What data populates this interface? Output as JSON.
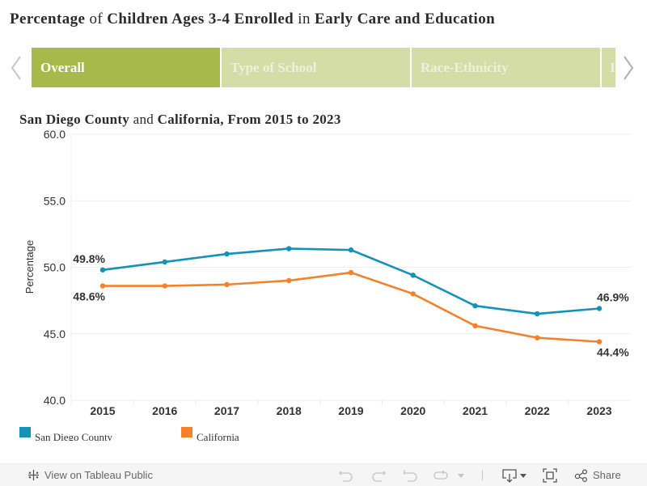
{
  "title": {
    "parts": [
      {
        "text": "Percentage",
        "bold": true
      },
      {
        "text": "of",
        "bold": false
      },
      {
        "text": "Children Ages 3-4 Enrolled",
        "bold": true
      },
      {
        "text": "in",
        "bold": false
      },
      {
        "text": "Early Care and Education",
        "bold": true
      }
    ]
  },
  "tabs": [
    {
      "label": "Overall",
      "active": true
    },
    {
      "label": "Type of School",
      "active": false
    },
    {
      "label": "Race-Ethnicity",
      "active": false
    },
    {
      "label": "I",
      "active": false
    }
  ],
  "nav": {
    "prev_icon": "chevron-left-icon",
    "next_icon": "chevron-right-icon"
  },
  "subtitle": {
    "parts": [
      {
        "text": "San Diego County",
        "bold": true
      },
      {
        "text": "and",
        "bold": false
      },
      {
        "text": "California, From 2015 to 2023",
        "bold": true
      }
    ]
  },
  "chart_data": {
    "type": "line",
    "title": "San Diego County and California, From 2015 to 2023",
    "xlabel": "",
    "ylabel": "Percentage",
    "x": [
      "2015",
      "2016",
      "2017",
      "2018",
      "2019",
      "2020",
      "2021",
      "2022",
      "2023"
    ],
    "ylim": [
      40,
      60
    ],
    "yticks": [
      "40.0",
      "45.0",
      "50.0",
      "55.0",
      "60.0"
    ],
    "ytick_values": [
      40,
      45,
      50,
      55,
      60
    ],
    "grid": true,
    "legend_position": "bottom-left",
    "series": [
      {
        "name": "San Diego County",
        "color": "#1493b8",
        "values": [
          49.8,
          50.4,
          51.0,
          51.4,
          51.3,
          49.4,
          47.1,
          46.5,
          46.9
        ],
        "labels": {
          "0": "49.8%",
          "8": "46.9%"
        },
        "label_side": "above"
      },
      {
        "name": "California",
        "color": "#f5822a",
        "values": [
          48.6,
          48.6,
          48.7,
          49.0,
          49.6,
          48.0,
          45.6,
          44.7,
          44.4
        ],
        "labels": {
          "0": "48.6%",
          "8": "44.4%"
        },
        "label_side": "below"
      }
    ]
  },
  "toolbar": {
    "view_on_label": "View on Tableau Public",
    "share_label": "Share",
    "icons": [
      "tableau-logo-icon",
      "undo-icon",
      "redo-icon",
      "revert-icon",
      "refresh-icon",
      "dropdown-caret-icon",
      "download-icon",
      "fullscreen-icon",
      "share-icon"
    ]
  }
}
